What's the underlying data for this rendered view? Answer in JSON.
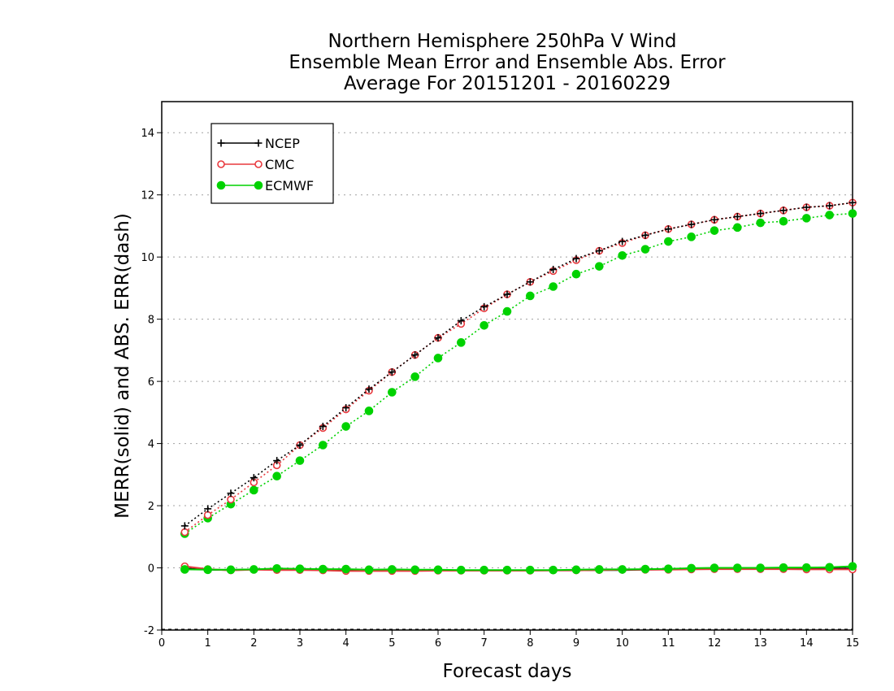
{
  "colors": {
    "NCEP": "#000000",
    "CMC": "#e8383d",
    "ECMWF": "#00d200",
    "grid": "#a0a0a0"
  },
  "chart_data": {
    "type": "line",
    "title_lines": [
      "Northern Hemisphere 250hPa V Wind",
      "Ensemble Mean Error and Ensemble Abs. Error",
      "Average For 20151201 - 20160229"
    ],
    "xlabel": "Forecast days",
    "ylabel": "MERR(solid) and ABS. ERR(dash)",
    "xlim": [
      0,
      15
    ],
    "ylim": [
      -2,
      15
    ],
    "xticks": [
      "0",
      "1",
      "2",
      "3",
      "4",
      "5",
      "6",
      "7",
      "8",
      "9",
      "10",
      "11",
      "12",
      "13",
      "14",
      "15"
    ],
    "yticks": [
      "-2",
      "0",
      "2",
      "4",
      "6",
      "8",
      "10",
      "12",
      "14"
    ],
    "grid": true,
    "legend_position": "top-left",
    "x": [
      0.5,
      1,
      1.5,
      2,
      2.5,
      3,
      3.5,
      4,
      4.5,
      5,
      5.5,
      6,
      6.5,
      7,
      7.5,
      8,
      8.5,
      9,
      9.5,
      10,
      10.5,
      11,
      11.5,
      12,
      12.5,
      13,
      13.5,
      14,
      14.5,
      15
    ],
    "series": [
      {
        "name": "NCEP",
        "marker": "plus",
        "merr": [
          -0.02,
          -0.06,
          -0.07,
          -0.05,
          -0.04,
          -0.05,
          -0.06,
          -0.07,
          -0.08,
          -0.08,
          -0.08,
          -0.08,
          -0.08,
          -0.08,
          -0.08,
          -0.08,
          -0.08,
          -0.08,
          -0.07,
          -0.07,
          -0.06,
          -0.05,
          -0.04,
          -0.03,
          -0.03,
          -0.02,
          -0.02,
          -0.02,
          -0.02,
          -0.02
        ],
        "abs_err": [
          1.35,
          1.9,
          2.4,
          2.9,
          3.45,
          3.95,
          4.55,
          5.15,
          5.75,
          6.3,
          6.85,
          7.4,
          7.95,
          8.4,
          8.8,
          9.2,
          9.6,
          9.95,
          10.2,
          10.5,
          10.7,
          10.9,
          11.05,
          11.2,
          11.3,
          11.4,
          11.5,
          11.6,
          11.65,
          11.75
        ]
      },
      {
        "name": "CMC",
        "marker": "circle",
        "merr": [
          0.05,
          -0.04,
          -0.08,
          -0.06,
          -0.07,
          -0.07,
          -0.08,
          -0.1,
          -0.1,
          -0.1,
          -0.1,
          -0.09,
          -0.09,
          -0.09,
          -0.09,
          -0.09,
          -0.08,
          -0.08,
          -0.07,
          -0.06,
          -0.06,
          -0.06,
          -0.05,
          -0.04,
          -0.04,
          -0.04,
          -0.04,
          -0.05,
          -0.05,
          -0.05
        ],
        "abs_err": [
          1.15,
          1.7,
          2.2,
          2.75,
          3.3,
          3.95,
          4.5,
          5.1,
          5.7,
          6.3,
          6.85,
          7.4,
          7.85,
          8.35,
          8.8,
          9.2,
          9.55,
          9.9,
          10.2,
          10.45,
          10.7,
          10.9,
          11.05,
          11.2,
          11.3,
          11.4,
          11.5,
          11.6,
          11.65,
          11.75
        ]
      },
      {
        "name": "ECMWF",
        "marker": "dot",
        "merr": [
          -0.05,
          -0.06,
          -0.06,
          -0.05,
          -0.02,
          -0.03,
          -0.04,
          -0.04,
          -0.06,
          -0.05,
          -0.06,
          -0.06,
          -0.07,
          -0.07,
          -0.07,
          -0.07,
          -0.07,
          -0.06,
          -0.05,
          -0.05,
          -0.04,
          -0.03,
          -0.01,
          0,
          0,
          0,
          0.01,
          0.01,
          0.02,
          0.05
        ],
        "abs_err": [
          1.1,
          1.6,
          2.05,
          2.5,
          2.95,
          3.45,
          3.95,
          4.55,
          5.05,
          5.65,
          6.15,
          6.75,
          7.25,
          7.8,
          8.25,
          8.75,
          9.05,
          9.45,
          9.7,
          10.05,
          10.25,
          10.5,
          10.65,
          10.85,
          10.95,
          11.1,
          11.15,
          11.25,
          11.35,
          11.4
        ]
      }
    ]
  }
}
